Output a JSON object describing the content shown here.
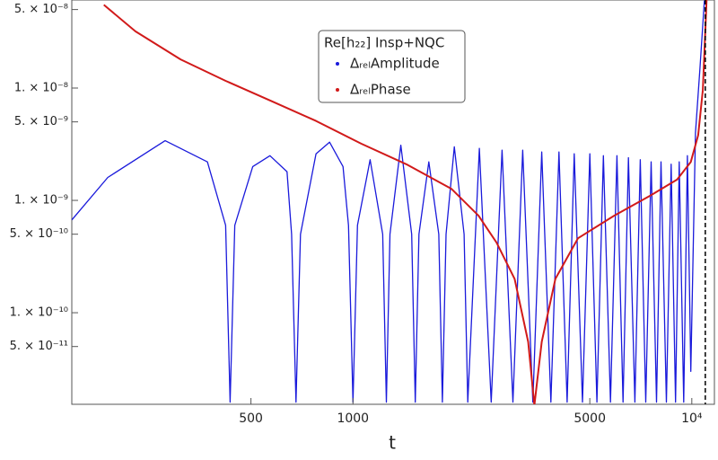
{
  "chart_data": {
    "type": "line",
    "xscale": "log",
    "yscale": "log",
    "grid": false,
    "xlabel": "t",
    "legend_title": "Re[h₂₂]  Insp+NQC",
    "legend_position": "top-center",
    "xlim": [
      148,
      11660
    ],
    "ylim": [
      1.53e-11,
      6.08e-08
    ],
    "xticks": [
      500,
      1000,
      5000,
      {
        "value": 10000,
        "label": "10⁴"
      }
    ],
    "yticks": [
      {
        "value": 5e-08,
        "label": "5. × 10⁻⁸"
      },
      {
        "value": 1e-08,
        "label": "1. × 10⁻⁸"
      },
      {
        "value": 5e-09,
        "label": "5. × 10⁻⁹"
      },
      {
        "value": 1e-09,
        "label": "1. × 10⁻⁹"
      },
      {
        "value": 5e-10,
        "label": "5. × 10⁻¹⁰"
      },
      {
        "value": 1e-10,
        "label": "1. × 10⁻¹⁰"
      },
      {
        "value": 5e-11,
        "label": "5. × 10⁻¹¹"
      }
    ],
    "vline": 10960,
    "series": [
      {
        "name": "ΔᵣₑₗAmplitude",
        "color": "#1a1adb",
        "x": [
          148,
          189,
          279,
          372,
          421,
          434,
          448,
          506,
          569,
          639,
          659,
          679,
          700,
          778,
          853,
          935,
          970,
          1000,
          1031,
          1124,
          1224,
          1255,
          1286,
          1384,
          1490,
          1527,
          1566,
          1675,
          1792,
          1836,
          1882,
          1991,
          2128,
          2182,
          2361,
          2559,
          2754,
          2965,
          3170,
          3396,
          3606,
          3837,
          4055,
          4285,
          4498,
          4756,
          5000,
          5248,
          5483,
          5754,
          6012,
          6266,
          6501,
          6792,
          7047,
          7311,
          7586,
          7870,
          8110,
          8414,
          8690,
          8954,
          9183,
          9462,
          9705,
          9931,
          10250,
          10570,
          10890
        ],
        "values": [
          6.7e-10,
          1.6e-09,
          3.4e-09,
          2.2e-09,
          6e-10,
          1.6e-11,
          6e-10,
          2e-09,
          2.5e-09,
          1.8e-09,
          5e-10,
          1.6e-11,
          5e-10,
          2.6e-09,
          3.3e-09,
          2e-09,
          6e-10,
          1.6e-11,
          6e-10,
          2.3e-09,
          5e-10,
          1.6e-11,
          5e-10,
          3.1e-09,
          5e-10,
          1.6e-11,
          5e-10,
          2.2e-09,
          5e-10,
          1.6e-11,
          5e-10,
          3e-09,
          5e-10,
          1.6e-11,
          2.9e-09,
          1.6e-11,
          2.8e-09,
          1.6e-11,
          2.8e-09,
          1.6e-11,
          2.7e-09,
          1.6e-11,
          2.7e-09,
          1.6e-11,
          2.6e-09,
          1.6e-11,
          2.6e-09,
          1.6e-11,
          2.5e-09,
          1.6e-11,
          2.5e-09,
          1.6e-11,
          2.4e-09,
          1.6e-11,
          2.3e-09,
          1.6e-11,
          2.2e-09,
          1.6e-11,
          2.2e-09,
          1.6e-11,
          2.1e-09,
          1.6e-11,
          2.2e-09,
          1.6e-11,
          2.5e-09,
          3e-11,
          4e-09,
          1.5e-08,
          6e-08
        ]
      },
      {
        "name": "ΔᵣₑₗPhase",
        "color": "#d11a1a",
        "x": [
          184,
          228,
          310,
          421,
          572,
          778,
          1057,
          1437,
          1951,
          2347,
          2654,
          3000,
          3290,
          3430,
          3606,
          3958,
          4613,
          5898,
          7532,
          9047,
          9931,
          10440,
          10780,
          11060
        ],
        "values": [
          5.5e-08,
          3.2e-08,
          1.8e-08,
          1.16e-08,
          7.7e-09,
          5.1e-09,
          3.2e-09,
          2.1e-09,
          1.27e-09,
          7.3e-10,
          4.2e-10,
          2e-10,
          5.5e-11,
          1.5e-11,
          5.5e-11,
          2e-10,
          4.6e-10,
          7.3e-10,
          1.1e-09,
          1.53e-09,
          2.2e-09,
          3.8e-09,
          9.6e-09,
          6.1e-08
        ]
      }
    ]
  }
}
